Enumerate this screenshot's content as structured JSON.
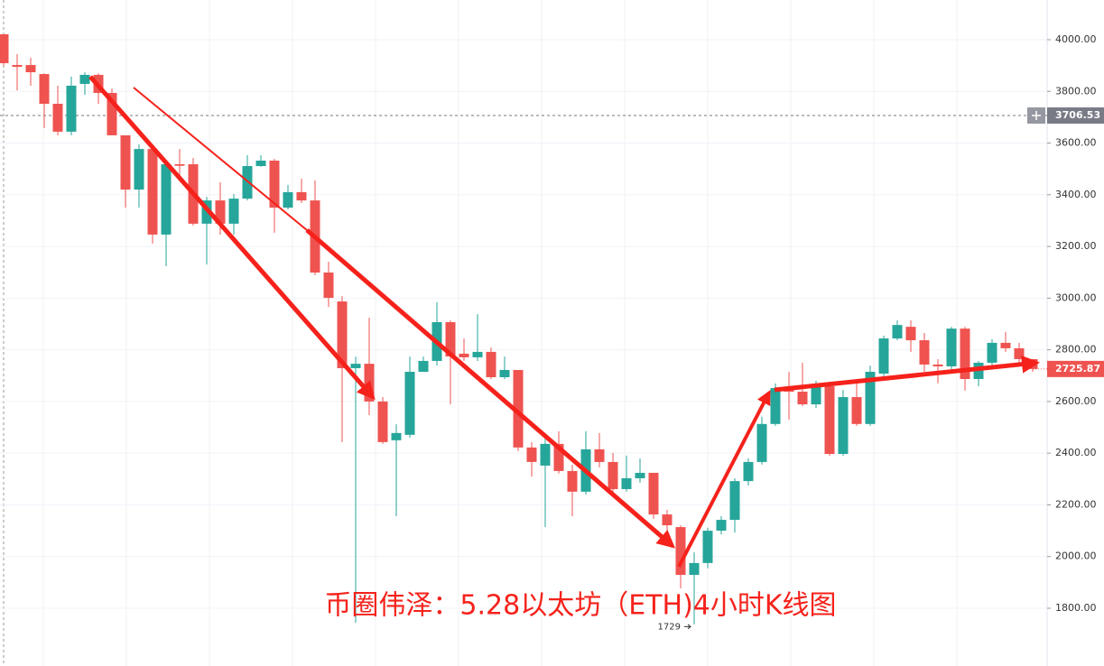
{
  "chart_data": {
    "type": "candlestick",
    "title": "币圈伟泽：5.28以太坊（ETH)4小时K线图",
    "up_color": "#26a69a",
    "down_color": "#ef5350",
    "grid": true,
    "ylim": [
      1576.5,
      4153.6
    ],
    "yticks": [
      {
        "value": 1800,
        "label": "1800.00"
      },
      {
        "value": 2000,
        "label": "2000.00"
      },
      {
        "value": 2200,
        "label": "2200.00"
      },
      {
        "value": 2400,
        "label": "2400.00"
      },
      {
        "value": 2600,
        "label": "2600.00"
      },
      {
        "value": 2800,
        "label": "2800.00"
      },
      {
        "value": 3000,
        "label": "3000.00"
      },
      {
        "value": 3200,
        "label": "3200.00"
      },
      {
        "value": 3400,
        "label": "3400.00"
      },
      {
        "value": 3600,
        "label": "3600.00"
      },
      {
        "value": 3800,
        "label": "3800.00"
      },
      {
        "value": 4000,
        "label": "4000.00"
      }
    ],
    "crosshair_price": 3706.53,
    "last_price": 2725.87,
    "low_marker": 1729,
    "categories": [
      null,
      null,
      null,
      null,
      null,
      null,
      null,
      null,
      null,
      null,
      null,
      null,
      null,
      null,
      null,
      null,
      null,
      null,
      null,
      null,
      null,
      null,
      null,
      null,
      null,
      null,
      null,
      null,
      null,
      null,
      null,
      null,
      null,
      null,
      null,
      null,
      null,
      null,
      null,
      null,
      null,
      null,
      null,
      null,
      null,
      null,
      null,
      null,
      null,
      null,
      null,
      null,
      null,
      null,
      null,
      null,
      null,
      null,
      null,
      null,
      null,
      null,
      null,
      null,
      null,
      null,
      null,
      null,
      null,
      null,
      null,
      null,
      null,
      null,
      null,
      null,
      null
    ],
    "open": [
      4021,
      3902,
      3902,
      3867,
      3752,
      3644,
      3829,
      3864,
      3794,
      3630,
      3420,
      3577,
      3246,
      3518,
      3518,
      3288,
      3378,
      3288,
      3385,
      3511,
      3532,
      3350,
      3410,
      3378,
      3099,
      2987,
      2729,
      2746,
      2600,
      2450,
      2471,
      2715,
      2757,
      2907,
      2785,
      2771,
      2792,
      2694,
      2722,
      2422,
      2352,
      2436,
      2331,
      2251,
      2415,
      2366,
      2261,
      2303,
      2324,
      2163,
      2114,
      1929,
      1975,
      2100,
      2142,
      2292,
      2366,
      2513,
      2652,
      2638,
      2589,
      2659,
      2397,
      2617,
      2513,
      2708,
      2844,
      2889,
      2837,
      2743,
      2736,
      2882,
      2687,
      2750,
      2827,
      2806,
      2764
    ],
    "high": [
      4021,
      3944,
      3930,
      3870,
      3822,
      3857,
      3874,
      3870,
      3811,
      3630,
      3595,
      3595,
      3525,
      3577,
      3542,
      3392,
      3448,
      3403,
      3553,
      3553,
      3539,
      3438,
      3462,
      3455,
      3141,
      3008,
      2774,
      2924,
      2617,
      2512,
      2774,
      2774,
      2984,
      2914,
      2844,
      2938,
      2809,
      2774,
      2722,
      2443,
      2460,
      2485,
      2355,
      2485,
      2478,
      2401,
      2391,
      2380,
      2324,
      2181,
      2121,
      2017,
      2111,
      2156,
      2303,
      2380,
      2541,
      2670,
      2715,
      2750,
      2680,
      2670,
      2645,
      2670,
      2739,
      2855,
      2914,
      2914,
      2865,
      2764,
      2889,
      2889,
      2757,
      2841,
      2869,
      2827,
      2764
    ],
    "low": [
      3900,
      3804,
      3822,
      3658,
      3630,
      3630,
      3787,
      3752,
      3630,
      3350,
      3350,
      3211,
      3124,
      3455,
      3281,
      3130,
      3246,
      3246,
      3378,
      3508,
      3253,
      3343,
      3368,
      3089,
      2966,
      2443,
      1744,
      2547,
      2436,
      2156,
      2460,
      2715,
      2739,
      2589,
      2757,
      2757,
      2687,
      2687,
      2408,
      2310,
      2114,
      2321,
      2156,
      2240,
      2345,
      2251,
      2251,
      2286,
      2146,
      2100,
      1877,
      1737,
      1954,
      2086,
      2093,
      2275,
      2356,
      2506,
      2530,
      2582,
      2575,
      2390,
      2390,
      2506,
      2506,
      2687,
      2837,
      2792,
      2715,
      2670,
      2722,
      2642,
      2659,
      2729,
      2792,
      2750,
      2715
    ],
    "close": [
      3909,
      3895,
      3874,
      3752,
      3644,
      3822,
      3864,
      3794,
      3630,
      3420,
      3577,
      3246,
      3518,
      3512,
      3288,
      3378,
      3288,
      3385,
      3511,
      3532,
      3350,
      3410,
      3378,
      3099,
      3001,
      2729,
      2746,
      2600,
      2443,
      2478,
      2715,
      2757,
      2907,
      2774,
      2771,
      2792,
      2694,
      2722,
      2422,
      2366,
      2436,
      2331,
      2251,
      2415,
      2366,
      2261,
      2303,
      2324,
      2163,
      2121,
      1929,
      1975,
      2100,
      2142,
      2292,
      2366,
      2513,
      2652,
      2638,
      2589,
      2666,
      2397,
      2617,
      2513,
      2715,
      2844,
      2896,
      2837,
      2743,
      2736,
      2882,
      2687,
      2750,
      2827,
      2806,
      2764,
      2725.87
    ]
  }
}
